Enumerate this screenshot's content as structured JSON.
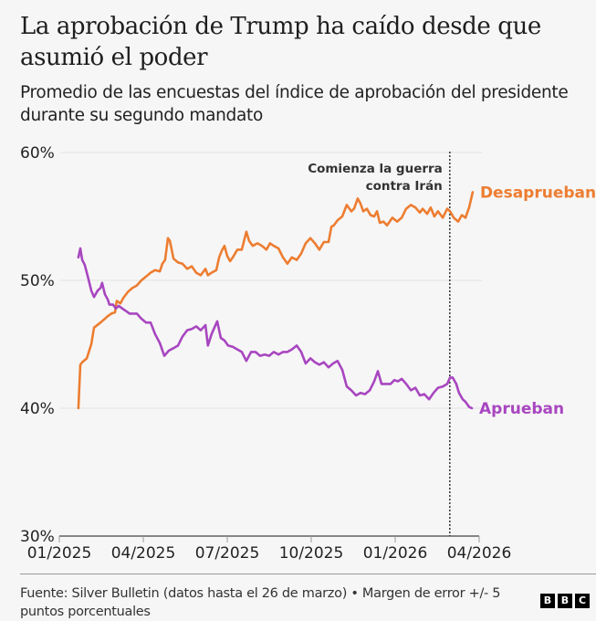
{
  "header": {
    "title": "La aprobación de Trump ha caído desde que asumió el poder",
    "subtitle": "Promedio de las encuestas del índice de aprobación del presidente durante su segundo mandato"
  },
  "footer": {
    "source": "Fuente: Silver Bulletin (datos hasta el 26 de marzo) • Margen de error +/- 5 puntos porcentuales",
    "logo_letters": [
      "B",
      "B",
      "C"
    ]
  },
  "chart_data": {
    "type": "line",
    "title": "La aprobación de Trump ha caído desde que asumió el poder",
    "subtitle": "Promedio de las encuestas del índice de aprobación del presidente durante su segundo mandato",
    "xlabel": "",
    "ylabel": "",
    "x_unit": "months since 01/2025",
    "xlim": [
      0,
      15
    ],
    "ylim": [
      30,
      60
    ],
    "x_ticks": [
      {
        "value": 0,
        "label": "01/2025"
      },
      {
        "value": 3,
        "label": "04/2025"
      },
      {
        "value": 6,
        "label": "07/2025"
      },
      {
        "value": 9,
        "label": "10/2025"
      },
      {
        "value": 12,
        "label": "01/2026"
      },
      {
        "value": 15,
        "label": "04/2026"
      }
    ],
    "y_ticks": [
      {
        "value": 60,
        "label": "60%"
      },
      {
        "value": 50,
        "label": "50%"
      },
      {
        "value": 40,
        "label": "40%"
      },
      {
        "value": 30,
        "label": "30%"
      }
    ],
    "grid": true,
    "legend": "inline-right",
    "annotations": [
      {
        "x": 13.95,
        "label_lines": [
          "Comienza la guerra",
          "contra Irán"
        ],
        "style": "dotted-vertical"
      }
    ],
    "series": [
      {
        "name": "Desaprueban",
        "color": "#ed7d31",
        "points": [
          [
            0.68,
            40.0
          ],
          [
            0.75,
            43.4
          ],
          [
            0.82,
            43.6
          ],
          [
            0.98,
            43.9
          ],
          [
            1.14,
            45.0
          ],
          [
            1.24,
            46.3
          ],
          [
            1.47,
            46.7
          ],
          [
            1.63,
            47.0
          ],
          [
            1.73,
            47.2
          ],
          [
            1.86,
            47.4
          ],
          [
            1.99,
            47.5
          ],
          [
            2.05,
            48.4
          ],
          [
            2.18,
            48.2
          ],
          [
            2.28,
            48.6
          ],
          [
            2.45,
            49.1
          ],
          [
            2.61,
            49.4
          ],
          [
            2.77,
            49.6
          ],
          [
            2.93,
            50.0
          ],
          [
            3.1,
            50.3
          ],
          [
            3.26,
            50.6
          ],
          [
            3.42,
            50.8
          ],
          [
            3.59,
            50.7
          ],
          [
            3.68,
            51.3
          ],
          [
            3.78,
            51.6
          ],
          [
            3.88,
            53.3
          ],
          [
            3.95,
            53.1
          ],
          [
            4.08,
            51.7
          ],
          [
            4.24,
            51.4
          ],
          [
            4.4,
            51.3
          ],
          [
            4.57,
            50.9
          ],
          [
            4.73,
            51.1
          ],
          [
            4.89,
            50.6
          ],
          [
            5.05,
            50.4
          ],
          [
            5.22,
            50.9
          ],
          [
            5.31,
            50.4
          ],
          [
            5.44,
            50.6
          ],
          [
            5.61,
            50.8
          ],
          [
            5.71,
            51.8
          ],
          [
            5.8,
            52.3
          ],
          [
            5.9,
            52.7
          ],
          [
            6.0,
            51.9
          ],
          [
            6.1,
            51.5
          ],
          [
            6.2,
            51.8
          ],
          [
            6.36,
            52.4
          ],
          [
            6.52,
            52.4
          ],
          [
            6.68,
            53.8
          ],
          [
            6.78,
            53.1
          ],
          [
            6.91,
            52.7
          ],
          [
            7.08,
            52.9
          ],
          [
            7.24,
            52.7
          ],
          [
            7.4,
            52.4
          ],
          [
            7.53,
            52.9
          ],
          [
            7.66,
            52.7
          ],
          [
            7.83,
            52.5
          ],
          [
            7.99,
            51.8
          ],
          [
            8.15,
            51.3
          ],
          [
            8.31,
            51.8
          ],
          [
            8.48,
            51.6
          ],
          [
            8.64,
            52.1
          ],
          [
            8.8,
            52.9
          ],
          [
            8.97,
            53.3
          ],
          [
            9.13,
            52.9
          ],
          [
            9.29,
            52.4
          ],
          [
            9.45,
            53.0
          ],
          [
            9.62,
            53.0
          ],
          [
            9.72,
            54.2
          ],
          [
            9.81,
            54.3
          ],
          [
            9.94,
            54.7
          ],
          [
            10.11,
            55.0
          ],
          [
            10.27,
            55.9
          ],
          [
            10.43,
            55.4
          ],
          [
            10.53,
            55.6
          ],
          [
            10.66,
            56.4
          ],
          [
            10.76,
            56.0
          ],
          [
            10.86,
            55.4
          ],
          [
            10.99,
            55.6
          ],
          [
            11.12,
            55.1
          ],
          [
            11.25,
            55.0
          ],
          [
            11.35,
            55.4
          ],
          [
            11.45,
            54.5
          ],
          [
            11.58,
            54.6
          ],
          [
            11.71,
            54.3
          ],
          [
            11.9,
            54.9
          ],
          [
            12.07,
            54.6
          ],
          [
            12.23,
            54.9
          ],
          [
            12.39,
            55.6
          ],
          [
            12.56,
            55.9
          ],
          [
            12.72,
            55.7
          ],
          [
            12.88,
            55.3
          ],
          [
            12.98,
            55.6
          ],
          [
            13.14,
            55.2
          ],
          [
            13.27,
            55.7
          ],
          [
            13.4,
            55.0
          ],
          [
            13.53,
            55.4
          ],
          [
            13.7,
            54.9
          ],
          [
            13.86,
            55.6
          ],
          [
            13.96,
            55.4
          ],
          [
            14.09,
            54.9
          ],
          [
            14.25,
            54.6
          ],
          [
            14.38,
            55.1
          ],
          [
            14.51,
            54.9
          ],
          [
            14.64,
            55.7
          ],
          [
            14.77,
            56.9
          ]
        ]
      },
      {
        "name": "Aprueban",
        "color": "#a846c0",
        "points": [
          [
            0.68,
            51.8
          ],
          [
            0.75,
            52.5
          ],
          [
            0.82,
            51.6
          ],
          [
            0.91,
            51.2
          ],
          [
            1.04,
            50.1
          ],
          [
            1.14,
            49.2
          ],
          [
            1.24,
            48.7
          ],
          [
            1.37,
            49.2
          ],
          [
            1.47,
            49.4
          ],
          [
            1.53,
            49.8
          ],
          [
            1.63,
            48.9
          ],
          [
            1.73,
            48.5
          ],
          [
            1.79,
            48.1
          ],
          [
            1.92,
            48.1
          ],
          [
            2.02,
            47.8
          ],
          [
            2.12,
            48.0
          ],
          [
            2.25,
            47.8
          ],
          [
            2.38,
            47.6
          ],
          [
            2.51,
            47.4
          ],
          [
            2.64,
            47.4
          ],
          [
            2.77,
            47.4
          ],
          [
            2.93,
            47.0
          ],
          [
            3.1,
            46.7
          ],
          [
            3.26,
            46.7
          ],
          [
            3.42,
            45.8
          ],
          [
            3.59,
            45.1
          ],
          [
            3.75,
            44.1
          ],
          [
            3.91,
            44.5
          ],
          [
            4.08,
            44.7
          ],
          [
            4.24,
            44.9
          ],
          [
            4.4,
            45.6
          ],
          [
            4.57,
            46.1
          ],
          [
            4.73,
            46.2
          ],
          [
            4.89,
            46.4
          ],
          [
            5.05,
            46.1
          ],
          [
            5.22,
            46.5
          ],
          [
            5.31,
            44.9
          ],
          [
            5.44,
            45.8
          ],
          [
            5.64,
            46.8
          ],
          [
            5.77,
            45.5
          ],
          [
            5.9,
            45.3
          ],
          [
            6.03,
            44.9
          ],
          [
            6.2,
            44.8
          ],
          [
            6.36,
            44.6
          ],
          [
            6.52,
            44.4
          ],
          [
            6.68,
            43.7
          ],
          [
            6.85,
            44.4
          ],
          [
            7.01,
            44.4
          ],
          [
            7.17,
            44.1
          ],
          [
            7.34,
            44.2
          ],
          [
            7.5,
            44.1
          ],
          [
            7.66,
            44.4
          ],
          [
            7.83,
            44.2
          ],
          [
            7.99,
            44.4
          ],
          [
            8.15,
            44.4
          ],
          [
            8.31,
            44.6
          ],
          [
            8.48,
            44.9
          ],
          [
            8.64,
            44.4
          ],
          [
            8.8,
            43.5
          ],
          [
            8.97,
            43.9
          ],
          [
            9.13,
            43.6
          ],
          [
            9.29,
            43.4
          ],
          [
            9.45,
            43.6
          ],
          [
            9.62,
            43.2
          ],
          [
            9.78,
            43.5
          ],
          [
            9.94,
            43.7
          ],
          [
            10.11,
            43.0
          ],
          [
            10.27,
            41.7
          ],
          [
            10.43,
            41.4
          ],
          [
            10.6,
            41.0
          ],
          [
            10.76,
            41.2
          ],
          [
            10.92,
            41.1
          ],
          [
            11.09,
            41.4
          ],
          [
            11.25,
            42.1
          ],
          [
            11.38,
            42.9
          ],
          [
            11.51,
            41.9
          ],
          [
            11.67,
            41.9
          ],
          [
            11.84,
            41.9
          ],
          [
            11.97,
            42.2
          ],
          [
            12.1,
            42.1
          ],
          [
            12.23,
            42.3
          ],
          [
            12.39,
            41.9
          ],
          [
            12.56,
            41.4
          ],
          [
            12.72,
            41.6
          ],
          [
            12.88,
            41.0
          ],
          [
            13.04,
            41.1
          ],
          [
            13.21,
            40.7
          ],
          [
            13.37,
            41.2
          ],
          [
            13.53,
            41.6
          ],
          [
            13.7,
            41.7
          ],
          [
            13.86,
            41.9
          ],
          [
            13.96,
            42.4
          ],
          [
            14.05,
            42.4
          ],
          [
            14.18,
            41.9
          ],
          [
            14.28,
            41.2
          ],
          [
            14.41,
            40.7
          ],
          [
            14.51,
            40.5
          ],
          [
            14.64,
            40.1
          ],
          [
            14.74,
            40.0
          ]
        ]
      }
    ]
  }
}
